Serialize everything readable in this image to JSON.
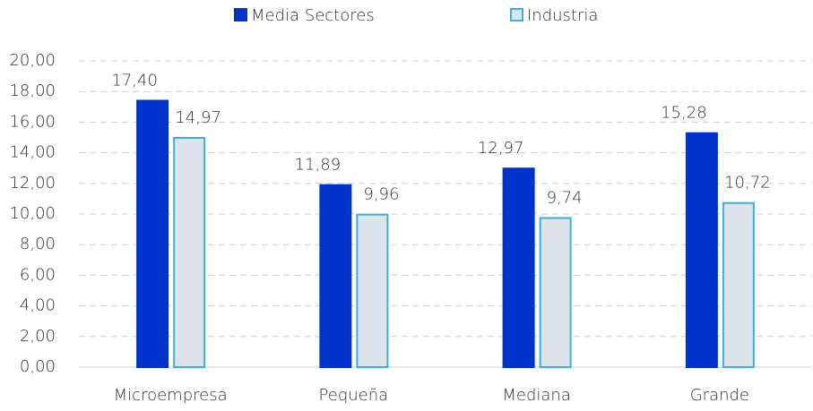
{
  "chart_data": {
    "type": "bar",
    "categories": [
      "Microempresa",
      "Pequeña",
      "Mediana",
      "Grande"
    ],
    "series": [
      {
        "name": "Media Sectores",
        "color": "#0033cc",
        "values": [
          17.4,
          11.89,
          12.97,
          15.28
        ],
        "value_labels": [
          "17,40",
          "11,89",
          "12,97",
          "15,28"
        ]
      },
      {
        "name": "Industria",
        "color": "#dce3ea",
        "edge_color": "#3ab0e0",
        "values": [
          14.97,
          9.96,
          9.74,
          10.72
        ],
        "value_labels": [
          "14,97",
          "9,96",
          "9,74",
          "10,72"
        ]
      }
    ],
    "ylim": [
      0,
      20
    ],
    "yticks": [
      {
        "value": 0,
        "label": "0,00"
      },
      {
        "value": 2,
        "label": "2,00"
      },
      {
        "value": 4,
        "label": "4,00"
      },
      {
        "value": 6,
        "label": "6,00"
      },
      {
        "value": 8,
        "label": "8,00"
      },
      {
        "value": 10,
        "label": "10,00"
      },
      {
        "value": 12,
        "label": "12,00"
      },
      {
        "value": 14,
        "label": "14,00"
      },
      {
        "value": 16,
        "label": "16,00"
      },
      {
        "value": 18,
        "label": "18,00"
      },
      {
        "value": 20,
        "label": "20,00"
      }
    ],
    "grid": true,
    "legend": "top"
  }
}
